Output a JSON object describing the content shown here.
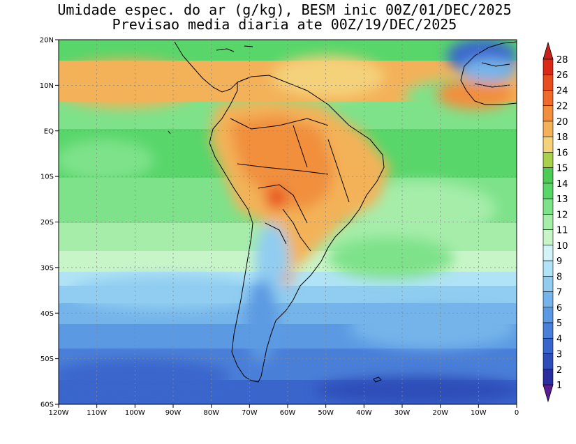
{
  "title_line1": "Umidade espec. do ar (g/kg), BESM inic 00Z/01/DEC/2025",
  "title_line2": "Previsao media diaria ate 00Z/19/DEC/2025",
  "lat_labels": [
    "20N",
    "10N",
    "EQ",
    "10S",
    "20S",
    "30S",
    "40S",
    "50S",
    "60S"
  ],
  "lon_labels": [
    "120W",
    "110W",
    "100W",
    "90W",
    "80W",
    "70W",
    "60W",
    "50W",
    "40W",
    "30W",
    "20W",
    "10W",
    "0"
  ],
  "colorbar": {
    "levels": [
      "1",
      "2",
      "3",
      "4",
      "5",
      "6",
      "7",
      "8",
      "9",
      "10",
      "11",
      "12",
      "13",
      "14",
      "15",
      "16",
      "18",
      "20",
      "22",
      "24",
      "26",
      "28"
    ],
    "colors": [
      "#3b1a8c",
      "#2b2f9e",
      "#2e4db8",
      "#3a66cc",
      "#4a7fd8",
      "#5b9ae2",
      "#74b4ea",
      "#90cdf0",
      "#b0e3f5",
      "#d2f3f8",
      "#c8f5c8",
      "#a6edaa",
      "#7ee28a",
      "#58d66a",
      "#4ccc55",
      "#a8d04a",
      "#f4d27a",
      "#f3b259",
      "#f18f3e",
      "#ee6a2a",
      "#e84d1f",
      "#d92a18"
    ],
    "low_color": "#5a1d96",
    "high_color": "#c9201a"
  }
}
